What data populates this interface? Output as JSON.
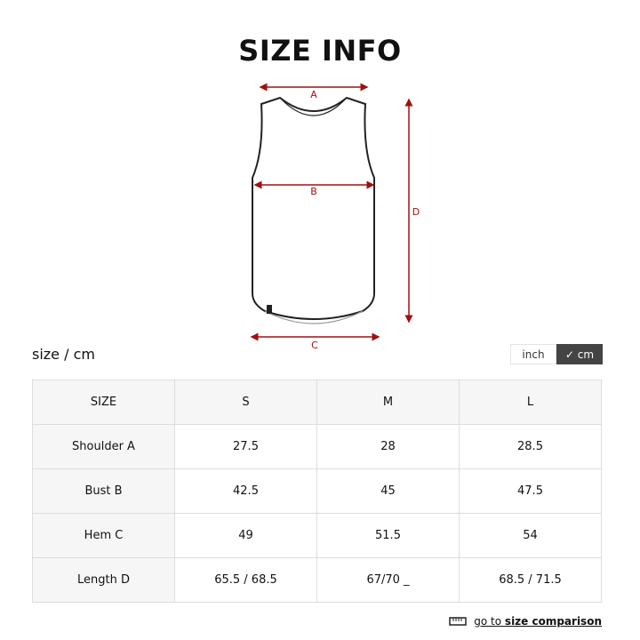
{
  "title": "SIZE INFO",
  "diagram": {
    "labels": [
      "A",
      "B",
      "C",
      "D"
    ],
    "arrow_color": "#a01010"
  },
  "unit_label": "size / cm",
  "toggle": {
    "inch": "inch",
    "cm": "✓ cm",
    "selected": "cm"
  },
  "table": {
    "headers": [
      "SIZE",
      "S",
      "M",
      "L"
    ],
    "rows": [
      {
        "label": "Shoulder A",
        "values": [
          "27.5",
          "28",
          "28.5"
        ]
      },
      {
        "label": "Bust B",
        "values": [
          "42.5",
          "45",
          "47.5"
        ]
      },
      {
        "label": "Hem C",
        "values": [
          "49",
          "51.5",
          "54"
        ]
      },
      {
        "label": "Length D",
        "values": [
          "65.5 / 68.5",
          "67/70 _",
          "68.5 / 71.5"
        ]
      }
    ]
  },
  "comparison_link": {
    "prefix": "go to ",
    "bold": "size comparison",
    "icon": "ruler-icon"
  }
}
